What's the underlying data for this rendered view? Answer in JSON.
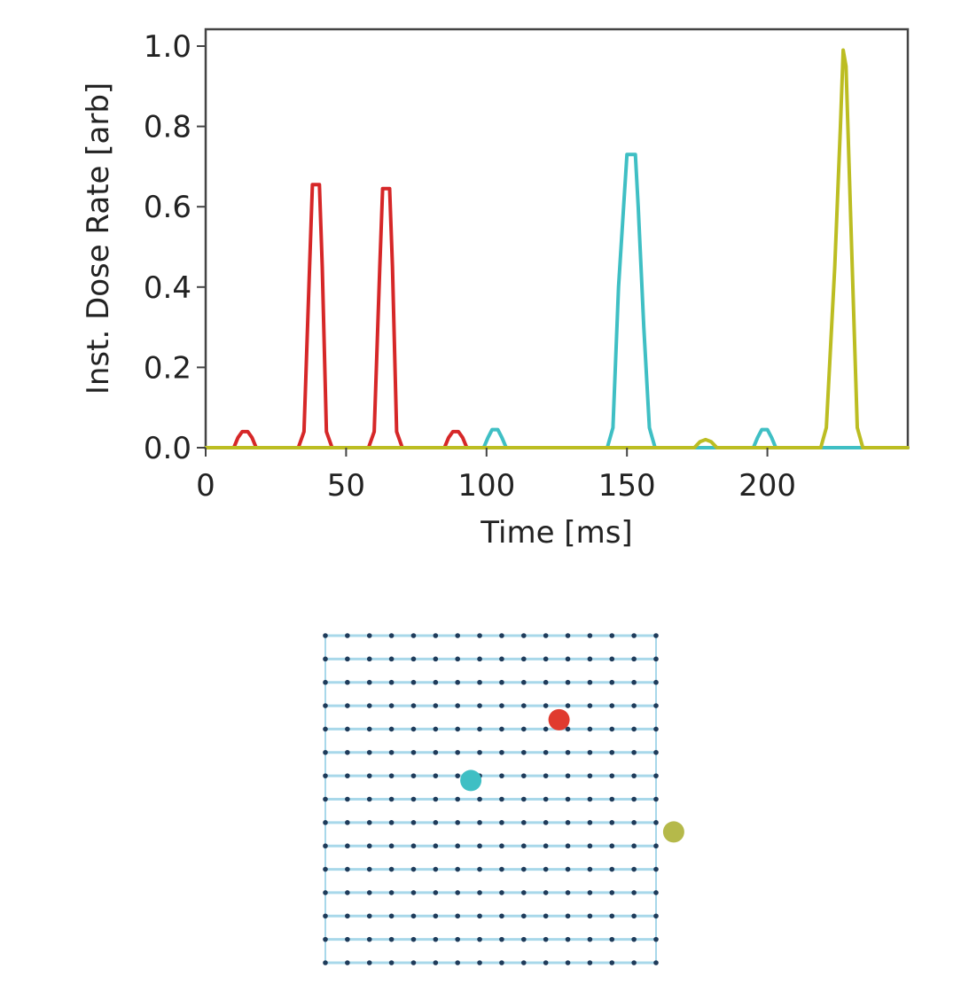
{
  "chart_data": [
    {
      "type": "line",
      "title": "",
      "xlabel": "Time [ms]",
      "ylabel": "Inst. Dose Rate [arb]",
      "xlim": [
        0,
        250
      ],
      "ylim": [
        0,
        1.0
      ],
      "xticks": [
        0,
        50,
        100,
        150,
        200
      ],
      "xtick_labels": [
        "0",
        "50",
        "100",
        "150",
        "200"
      ],
      "yticks": [
        0,
        0.2,
        0.4,
        0.6,
        0.8,
        1.0
      ],
      "ytick_labels": [
        "0.0",
        "0.2",
        "0.4",
        "0.6",
        "0.8",
        "1.0"
      ],
      "grid": false,
      "legend": "none",
      "series": [
        {
          "color": "#d62728",
          "x": [
            0,
            10,
            11.5,
            13,
            15,
            16.5,
            18,
            33,
            35,
            37,
            38,
            40.5,
            41.5,
            43,
            45,
            58,
            60,
            62,
            63,
            65.5,
            66.5,
            68,
            70,
            85,
            86.5,
            88,
            90,
            91.5,
            93,
            250
          ],
          "y": [
            0,
            0,
            0.025,
            0.04,
            0.04,
            0.025,
            0,
            0,
            0.04,
            0.45,
            0.655,
            0.655,
            0.45,
            0.04,
            0,
            0,
            0.04,
            0.45,
            0.645,
            0.645,
            0.45,
            0.04,
            0,
            0,
            0.025,
            0.04,
            0.04,
            0.025,
            0,
            0
          ]
        },
        {
          "color": "#3fbfc4",
          "x": [
            0,
            99,
            100.5,
            102,
            104,
            105.5,
            107,
            143,
            145,
            147,
            149,
            150,
            153,
            154,
            156,
            158,
            160,
            195,
            196.5,
            198,
            200,
            201.5,
            203,
            250
          ],
          "y": [
            0,
            0,
            0.025,
            0.045,
            0.045,
            0.025,
            0,
            0,
            0.05,
            0.4,
            0.62,
            0.73,
            0.73,
            0.6,
            0.3,
            0.05,
            0,
            0,
            0.025,
            0.045,
            0.045,
            0.025,
            0,
            0
          ]
        },
        {
          "color": "#bcbd22",
          "x": [
            0,
            174,
            176,
            178,
            180,
            182,
            219,
            221,
            224,
            226,
            227,
            228,
            230,
            232,
            234,
            250
          ],
          "y": [
            0,
            0,
            0.015,
            0.02,
            0.015,
            0,
            0,
            0.05,
            0.45,
            0.8,
            0.99,
            0.95,
            0.5,
            0.05,
            0,
            0
          ]
        }
      ]
    },
    {
      "type": "scatter",
      "title": "",
      "xlabel": "",
      "ylabel": "",
      "grid_rows": 15,
      "grid_cols": 16,
      "grid_point_color": "#1f3b5a",
      "scan_line_color": "#a8d8ea",
      "highlighted_points": [
        {
          "color": "#e03a2f",
          "col": 10.6,
          "row": 3.6
        },
        {
          "color": "#3fbfc4",
          "col": 6.6,
          "row": 6.2
        },
        {
          "color": "#b5b94a",
          "col": 15.8,
          "row": 8.4
        }
      ]
    }
  ]
}
